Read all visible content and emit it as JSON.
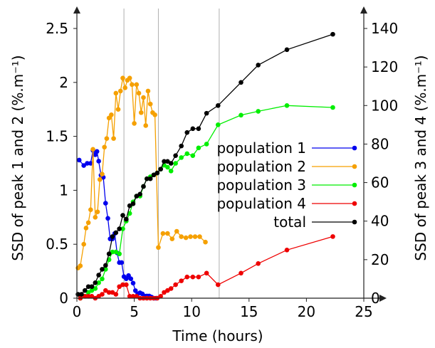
{
  "chart_data": {
    "type": "line",
    "xlabel": "Time (hours)",
    "ylabel_left": "SSD of peak 1 and 2 (%.m⁻¹)",
    "ylabel_right": "SSD of peak 3 and 4 (%.m⁻¹)",
    "xlim": [
      0,
      25
    ],
    "ylim_left": [
      0,
      2.5
    ],
    "ylim_right": [
      0,
      140
    ],
    "xticks": [
      "0",
      "5",
      "10",
      "15",
      "20",
      "25"
    ],
    "yticks_left": [
      "0",
      "0.5",
      "1",
      "1.5",
      "2",
      "2.5"
    ],
    "yticks_right": [
      "0",
      "20",
      "40",
      "60",
      "80",
      "100",
      "120",
      "140"
    ],
    "vlines": [
      4.1,
      7.1,
      12.4
    ],
    "grid": false,
    "legend_position": "center-right",
    "colors": {
      "population 1": "#0000ee",
      "population 2": "#f5a000",
      "population 3": "#00ee00",
      "population 4": "#ee0000",
      "total": "#000000",
      "vline": "#b0b0b0"
    },
    "series": [
      {
        "name": "population 1",
        "axis": "left",
        "x": [
          0.2,
          0.6,
          0.9,
          1.2,
          1.4,
          1.6,
          1.75,
          1.9,
          2.1,
          2.3,
          2.5,
          2.7,
          2.9,
          3.1,
          3.3,
          3.5,
          3.7,
          3.9,
          4.1,
          4.3,
          4.5,
          4.7,
          4.9,
          5.1,
          5.3,
          5.5,
          5.7,
          5.9,
          6.1,
          6.3,
          6.5,
          6.7,
          6.9
        ],
        "y": [
          1.28,
          1.23,
          1.25,
          1.25,
          1.37,
          1.33,
          1.36,
          1.27,
          1.14,
          1.12,
          0.88,
          0.74,
          0.55,
          0.55,
          0.6,
          0.42,
          0.33,
          0.33,
          0.2,
          0.18,
          0.21,
          0.18,
          0.14,
          0.07,
          0.04,
          0.05,
          0.04,
          0.02,
          0.02,
          0.02,
          0.01,
          0.0,
          0.0
        ]
      },
      {
        "name": "population 2",
        "axis": "left",
        "x": [
          0.1,
          0.3,
          0.6,
          0.8,
          1.0,
          1.2,
          1.4,
          1.6,
          1.8,
          2.0,
          2.2,
          2.4,
          2.6,
          2.8,
          3.0,
          3.2,
          3.4,
          3.6,
          3.8,
          4.0,
          4.2,
          4.4,
          4.6,
          4.8,
          5.0,
          5.2,
          5.4,
          5.6,
          5.8,
          6.0,
          6.2,
          6.4,
          6.6,
          6.8,
          7.1,
          7.5,
          7.9,
          8.3,
          8.7,
          9.1,
          9.5,
          9.9,
          10.3,
          10.7,
          11.2
        ],
        "y": [
          0.28,
          0.3,
          0.5,
          0.65,
          0.7,
          0.82,
          1.38,
          0.75,
          0.8,
          1.1,
          1.15,
          1.4,
          1.48,
          1.67,
          1.7,
          1.48,
          1.9,
          1.75,
          1.92,
          2.04,
          1.95,
          2.02,
          2.04,
          1.98,
          1.62,
          1.98,
          1.9,
          1.72,
          1.86,
          1.6,
          1.92,
          1.8,
          1.72,
          1.7,
          0.47,
          0.6,
          0.6,
          0.55,
          0.62,
          0.57,
          0.56,
          0.57,
          0.57,
          0.57,
          0.52
        ]
      },
      {
        "name": "population 3",
        "axis": "right",
        "x": [
          0.3,
          0.7,
          1.0,
          1.3,
          1.6,
          1.9,
          2.2,
          2.5,
          2.8,
          3.1,
          3.4,
          3.7,
          4.0,
          4.3,
          4.6,
          4.9,
          5.2,
          5.5,
          5.8,
          6.1,
          6.4,
          6.7,
          7.0,
          7.3,
          7.6,
          7.9,
          8.2,
          8.6,
          9.1,
          9.6,
          10.1,
          10.6,
          11.3,
          12.3,
          14.3,
          15.8,
          18.3,
          22.3
        ],
        "y": [
          0,
          1,
          3,
          4,
          5,
          8,
          10,
          15,
          20,
          24,
          24,
          23,
          36,
          40,
          44,
          50,
          53,
          53,
          58,
          62,
          63,
          64,
          65,
          67,
          69,
          68,
          66,
          70,
          73,
          75,
          74,
          78,
          80,
          90,
          95,
          97,
          100,
          99
        ]
      },
      {
        "name": "population 4",
        "axis": "right",
        "x": [
          0.3,
          0.7,
          1.0,
          1.3,
          1.6,
          1.9,
          2.2,
          2.5,
          2.8,
          3.1,
          3.4,
          3.7,
          4.0,
          4.3,
          4.6,
          4.9,
          5.2,
          5.5,
          5.8,
          6.1,
          6.4,
          6.7,
          7.0,
          7.3,
          7.6,
          7.9,
          8.2,
          8.6,
          9.1,
          9.6,
          10.1,
          10.6,
          11.3,
          12.3,
          14.3,
          15.8,
          18.3,
          22.3
        ],
        "y": [
          0,
          1,
          1,
          1,
          0,
          1,
          2,
          4,
          3,
          3,
          2,
          6,
          7,
          7,
          1,
          1,
          1,
          0,
          0,
          0,
          0,
          0,
          0,
          1,
          3,
          4,
          5,
          7,
          9,
          11,
          11,
          11,
          13,
          7,
          13,
          18,
          25,
          32
        ]
      },
      {
        "name": "total",
        "axis": "right",
        "x": [
          0.1,
          0.4,
          0.7,
          1.0,
          1.3,
          1.6,
          1.9,
          2.2,
          2.5,
          2.8,
          3.1,
          3.4,
          3.7,
          4.0,
          4.3,
          4.6,
          4.9,
          5.2,
          5.5,
          5.8,
          6.1,
          6.4,
          6.7,
          7.0,
          7.3,
          7.6,
          7.9,
          8.2,
          8.6,
          9.1,
          9.6,
          10.1,
          10.6,
          11.3,
          12.3,
          14.3,
          15.8,
          18.3,
          22.3
        ],
        "y": [
          2,
          2,
          4,
          6,
          6,
          8,
          12,
          15,
          17,
          23,
          32,
          34,
          36,
          43,
          41,
          48,
          49,
          53,
          54,
          58,
          62,
          62,
          64,
          65,
          67,
          71,
          71,
          70,
          74,
          79,
          86,
          88,
          88,
          96,
          100,
          112,
          121,
          129,
          137
        ]
      }
    ]
  }
}
